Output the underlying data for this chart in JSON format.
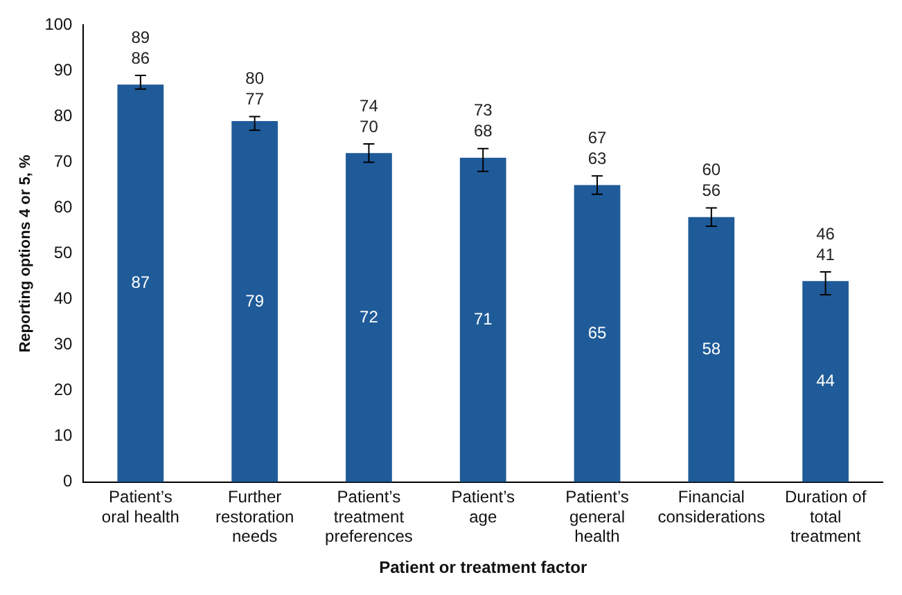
{
  "chart_data": {
    "type": "bar",
    "xlabel": "Patient or treatment factor",
    "ylabel": "Reporting options 4 or 5, %",
    "categories": [
      "Patient’s oral health",
      "Further restoration needs",
      "Patient’s treatment preferences",
      "Patient’s age",
      "Patient’s general health",
      "Financial considerations",
      "Duration of total treatment"
    ],
    "values": [
      87,
      79,
      72,
      71,
      65,
      58,
      44
    ],
    "errors": [
      [
        86,
        89
      ],
      [
        77,
        80
      ],
      [
        70,
        74
      ],
      [
        68,
        73
      ],
      [
        63,
        67
      ],
      [
        56,
        60
      ],
      [
        41,
        46
      ]
    ],
    "color": "#1f5b99",
    "data_labels": true,
    "ylim": [
      0,
      100
    ],
    "yticks": [
      0,
      10,
      20,
      30,
      40,
      50,
      60,
      70,
      80,
      90,
      100
    ],
    "grid": false,
    "annotations": [
      {
        "text": "89",
        "x": "Patient’s oral health",
        "y": 89
      },
      {
        "text": "86",
        "x": "Patient’s oral health",
        "y": 86
      },
      {
        "text": "80",
        "x": "Further restoration needs",
        "y": 80
      },
      {
        "text": "77",
        "x": "Further restoration needs",
        "y": 77
      },
      {
        "text": "74",
        "x": "Patient’s treatment preferences",
        "y": 74
      },
      {
        "text": "70",
        "x": "Patient’s treatment preferences",
        "y": 70
      },
      {
        "text": "73",
        "x": "Patient’s age",
        "y": 73
      },
      {
        "text": "68",
        "x": "Patient’s age",
        "y": 68
      },
      {
        "text": "67",
        "x": "Patient’s general health",
        "y": 67
      },
      {
        "text": "63",
        "x": "Patient’s general health",
        "y": 63
      },
      {
        "text": "60",
        "x": "Financial considerations",
        "y": 60
      },
      {
        "text": "56",
        "x": "Financial considerations",
        "y": 56
      },
      {
        "text": "46",
        "x": "Duration of total treatment",
        "y": 46
      },
      {
        "text": "41",
        "x": "Duration of total treatment",
        "y": 41
      }
    ]
  }
}
